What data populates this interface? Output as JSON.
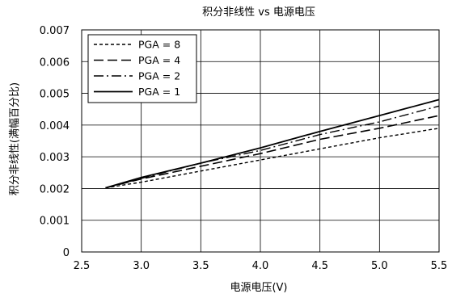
{
  "chart_data": {
    "type": "line",
    "title": "积分非线性 vs 电源电压",
    "xlabel": "电源电压(V)",
    "ylabel": "积分非线性(满幅百分比)",
    "xlim": [
      2.5,
      5.5
    ],
    "ylim": [
      0,
      0.007
    ],
    "xticks": [
      "2.5",
      "3.0",
      "3.5",
      "4.0",
      "4.5",
      "5.0",
      "5.5"
    ],
    "yticks": [
      "0",
      "0.001",
      "0.002",
      "0.003",
      "0.004",
      "0.005",
      "0.006",
      "0.007"
    ],
    "xtick_values": [
      2.5,
      3.0,
      3.5,
      4.0,
      4.5,
      5.0,
      5.5
    ],
    "ytick_values": [
      0,
      0.001,
      0.002,
      0.003,
      0.004,
      0.005,
      0.006,
      0.007
    ],
    "grid": true,
    "legend_position": "top-left",
    "series": [
      {
        "name": "PGA = 8",
        "dash": "short-dash",
        "color": "#000000",
        "x": [
          2.7,
          3.0,
          3.5,
          4.0,
          4.5,
          5.0,
          5.5
        ],
        "y": [
          0.00202,
          0.0022,
          0.00255,
          0.0029,
          0.00325,
          0.0036,
          0.0039
        ]
      },
      {
        "name": "PGA = 4",
        "dash": "long-dash",
        "color": "#000000",
        "x": [
          2.7,
          3.0,
          3.5,
          4.0,
          4.5,
          5.0,
          5.5
        ],
        "y": [
          0.00202,
          0.0023,
          0.0027,
          0.0031,
          0.00355,
          0.0039,
          0.0043
        ]
      },
      {
        "name": "PGA = 2",
        "dash": "dash-dot",
        "color": "#000000",
        "x": [
          2.7,
          3.0,
          3.5,
          4.0,
          4.5,
          5.0,
          5.5
        ],
        "y": [
          0.00202,
          0.00232,
          0.0028,
          0.0032,
          0.0037,
          0.0041,
          0.0046
        ]
      },
      {
        "name": "PGA = 1",
        "dash": "solid",
        "color": "#000000",
        "x": [
          2.7,
          3.0,
          3.5,
          4.0,
          4.5,
          5.0,
          5.5
        ],
        "y": [
          0.00202,
          0.00235,
          0.0028,
          0.00328,
          0.0038,
          0.0043,
          0.0048
        ]
      }
    ]
  }
}
